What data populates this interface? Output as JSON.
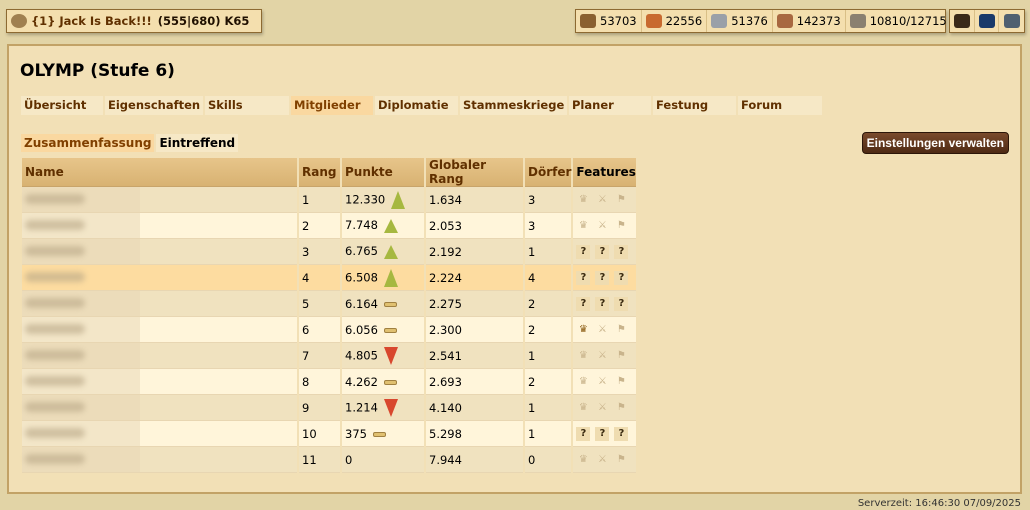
{
  "village": {
    "name": "{1} Jack Is Back!!!",
    "coords": "(555|680) K65"
  },
  "resources": [
    {
      "icon": "wood-icon",
      "value": "53703",
      "color": "#8a6030"
    },
    {
      "icon": "clay-icon",
      "value": "22556",
      "color": "#c86a30"
    },
    {
      "icon": "iron-icon",
      "value": "51376",
      "color": "#9aa0a8"
    },
    {
      "icon": "storage-icon",
      "value": "142373",
      "color": "#a86840"
    },
    {
      "icon": "farm-icon",
      "value": "10810/12715",
      "color": "#8a8070"
    }
  ],
  "quick": [
    {
      "icon": "chest-icon",
      "color": "#3a2a1a"
    },
    {
      "icon": "shield-icon",
      "color": "#1a3a6a"
    },
    {
      "icon": "helmet-icon",
      "color": "#506070"
    }
  ],
  "title": "OLYMP (Stufe 6)",
  "tabs": [
    {
      "label": "Übersicht",
      "w": 82
    },
    {
      "label": "Eigenschaften",
      "w": 98
    },
    {
      "label": "Skills",
      "w": 84
    },
    {
      "label": "Mitglieder",
      "w": 82,
      "active": true
    },
    {
      "label": "Diplomatie",
      "w": 83
    },
    {
      "label": "Stammeskriege",
      "w": 107
    },
    {
      "label": "Planer",
      "w": 82
    },
    {
      "label": "Festung",
      "w": 83
    },
    {
      "label": "Forum",
      "w": 84
    }
  ],
  "subtabs": [
    {
      "label": "Zusammenfassung",
      "active": true
    },
    {
      "label": "Eintreffend"
    }
  ],
  "manage_button": "Einstellungen verwalten",
  "columns": [
    "Name",
    "Rang",
    "Punkte",
    "Globaler Rang",
    "Dörfer",
    "Features"
  ],
  "rows": [
    {
      "rank": "1",
      "points": "12.330",
      "trend": "up-strong",
      "global": "1.634",
      "villages": "3",
      "features": "none"
    },
    {
      "rank": "2",
      "points": "7.748",
      "trend": "up",
      "global": "2.053",
      "villages": "3",
      "features": "none"
    },
    {
      "rank": "3",
      "points": "6.765",
      "trend": "up",
      "global": "2.192",
      "villages": "1",
      "features": "unknown"
    },
    {
      "rank": "4",
      "points": "6.508",
      "trend": "up-strong",
      "global": "2.224",
      "villages": "4",
      "features": "unknown",
      "highlight": true
    },
    {
      "rank": "5",
      "points": "6.164",
      "trend": "flat",
      "global": "2.275",
      "villages": "2",
      "features": "unknown"
    },
    {
      "rank": "6",
      "points": "6.056",
      "trend": "flat",
      "global": "2.300",
      "villages": "2",
      "features": "leader"
    },
    {
      "rank": "7",
      "points": "4.805",
      "trend": "down",
      "global": "2.541",
      "villages": "1",
      "features": "none"
    },
    {
      "rank": "8",
      "points": "4.262",
      "trend": "flat",
      "global": "2.693",
      "villages": "2",
      "features": "none"
    },
    {
      "rank": "9",
      "points": "1.214",
      "trend": "down",
      "global": "4.140",
      "villages": "1",
      "features": "none"
    },
    {
      "rank": "10",
      "points": "375",
      "trend": "flat",
      "global": "5.298",
      "villages": "1",
      "features": "unknown"
    },
    {
      "rank": "11",
      "points": "0",
      "trend": "",
      "global": "7.944",
      "villages": "0",
      "features": "none"
    }
  ],
  "server_time": "Serverzeit: 16:46:30 07/09/2025"
}
